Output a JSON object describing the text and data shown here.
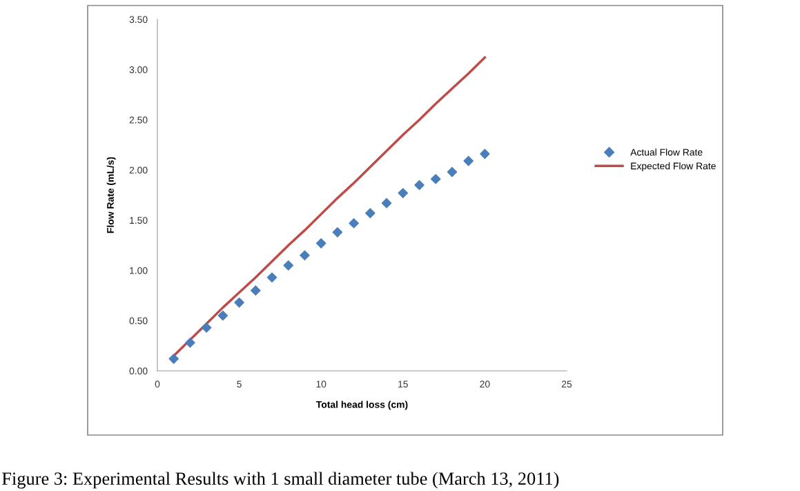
{
  "chart_data": {
    "type": "scatter",
    "xlabel": "Total head loss (cm)",
    "ylabel": "Flow Rate (mL/s)",
    "x": [
      1,
      2,
      3,
      4,
      5,
      6,
      7,
      8,
      9,
      10,
      11,
      12,
      13,
      14,
      15,
      16,
      17,
      18,
      19,
      20
    ],
    "series": [
      {
        "name": "Actual Flow Rate",
        "color": "#4a7ebb",
        "marker": "diamond",
        "values": [
          0.12,
          0.28,
          0.43,
          0.55,
          0.68,
          0.8,
          0.93,
          1.05,
          1.15,
          1.27,
          1.38,
          1.47,
          1.57,
          1.67,
          1.77,
          1.85,
          1.91,
          1.98,
          2.09,
          2.16
        ]
      },
      {
        "name": "Expected Flow Rate",
        "type": "line",
        "color": "#be4b48",
        "line_style": "solid",
        "values": [
          0.15,
          0.31,
          0.47,
          0.63,
          0.78,
          0.93,
          1.09,
          1.25,
          1.4,
          1.56,
          1.72,
          1.87,
          2.03,
          2.19,
          2.35,
          2.5,
          2.66,
          2.81,
          2.96,
          3.12
        ]
      }
    ],
    "xlim": [
      0,
      25
    ],
    "xticks": [
      0,
      5,
      10,
      15,
      20,
      25
    ],
    "ylim": [
      0,
      3.5
    ],
    "yticks": [
      {
        "value": 0,
        "label": "0.00"
      },
      {
        "value": 0.5,
        "label": "0.50"
      },
      {
        "value": 1,
        "label": "1.00"
      },
      {
        "value": 1.5,
        "label": "1.50"
      },
      {
        "value": 2,
        "label": "2.00"
      },
      {
        "value": 2.5,
        "label": "2.50"
      },
      {
        "value": 3,
        "label": "3.00"
      },
      {
        "value": 3.5,
        "label": "3.50"
      }
    ],
    "grid": false,
    "legend": "right",
    "annotations": [
      "Figure 3: Experimental Results with 1 small diameter tube (March 13, 2011)"
    ]
  }
}
